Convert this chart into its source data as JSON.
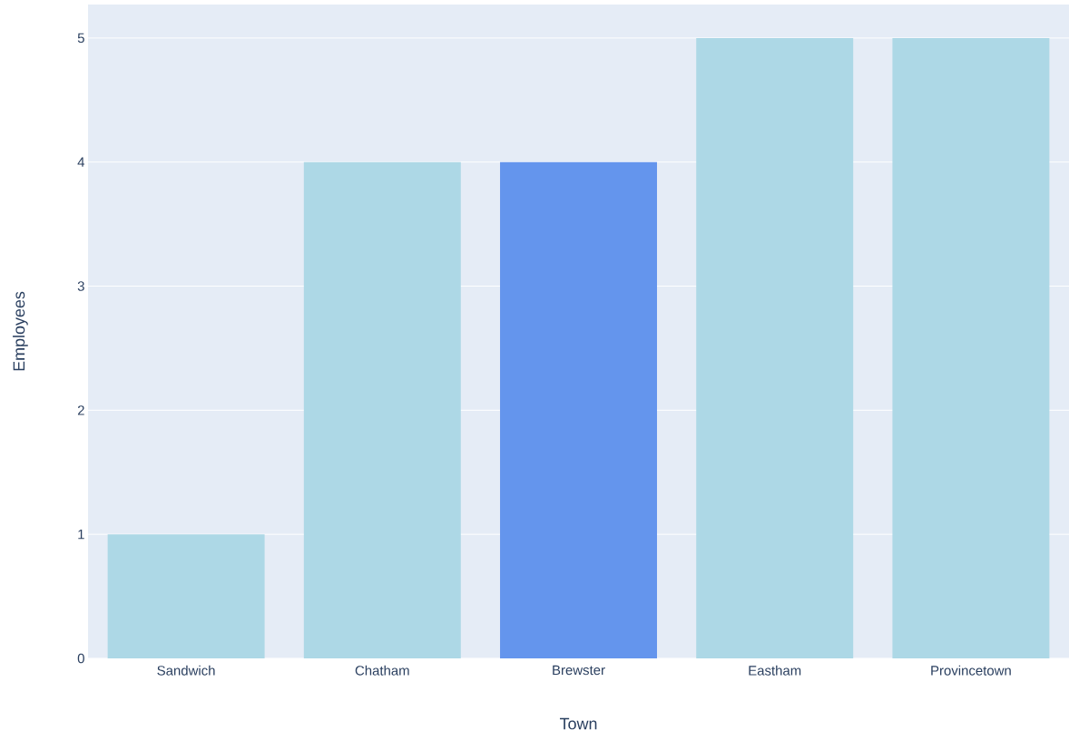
{
  "chart_data": {
    "type": "bar",
    "xlabel": "Town",
    "ylabel": "Employees",
    "categories": [
      "Sandwich",
      "Chatham",
      "Brewster",
      "Eastham",
      "Provincetown"
    ],
    "values": [
      1,
      4,
      4,
      5,
      5
    ],
    "colors": [
      "#add8e6",
      "#add8e6",
      "#6495ed",
      "#add8e6",
      "#add8e6"
    ],
    "ylim": [
      0,
      5.27
    ],
    "yticks": [
      0,
      1,
      2,
      3,
      4,
      5
    ],
    "grid": "y"
  }
}
